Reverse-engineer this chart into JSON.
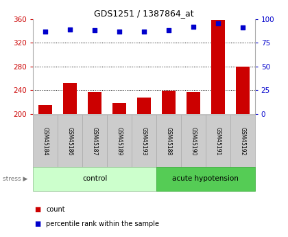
{
  "title": "GDS1251 / 1387864_at",
  "categories": [
    "GSM45184",
    "GSM45186",
    "GSM45187",
    "GSM45189",
    "GSM45193",
    "GSM45188",
    "GSM45190",
    "GSM45191",
    "GSM45192"
  ],
  "bar_values": [
    215,
    252,
    237,
    218,
    227,
    239,
    237,
    358,
    280
  ],
  "percentile_values": [
    87,
    89,
    88,
    87,
    87,
    88,
    92,
    95,
    91
  ],
  "bar_color": "#cc0000",
  "dot_color": "#0000cc",
  "ylim_left": [
    200,
    360
  ],
  "ylim_right": [
    0,
    100
  ],
  "yticks_left": [
    200,
    240,
    280,
    320,
    360
  ],
  "yticks_right": [
    0,
    25,
    50,
    75,
    100
  ],
  "control_label": "control",
  "acute_label": "acute hypotension",
  "stress_label": "stress",
  "n_control": 5,
  "n_acute": 4,
  "legend_count": "count",
  "legend_pct": "percentile rank within the sample",
  "background_color": "#ffffff",
  "ylabel_left_color": "#cc0000",
  "ylabel_right_color": "#0000cc",
  "control_bg": "#ccffcc",
  "acute_bg": "#55cc55",
  "xticklabel_bg": "#cccccc",
  "xticklabel_edgecolor": "#aaaaaa",
  "grid_yticks": [
    240,
    280,
    320
  ]
}
